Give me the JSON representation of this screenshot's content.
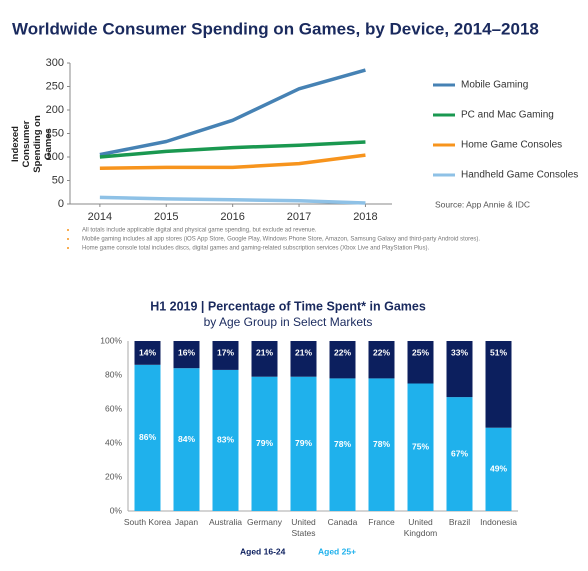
{
  "chart_data": [
    {
      "type": "line",
      "title": "Worldwide Consumer Spending on Games, by Device, 2014–2018",
      "y_label": "Indexed Consumer Spending on Games",
      "x": [
        2014,
        2015,
        2016,
        2017,
        2018
      ],
      "xticks": [
        2014,
        2015,
        2016,
        2017,
        2018
      ],
      "xlim": [
        2013.55,
        2018.4
      ],
      "ylim": [
        0,
        300
      ],
      "yticks": [
        0,
        50,
        100,
        150,
        200,
        250,
        300
      ],
      "legend": "right",
      "series": [
        {
          "name": "Mobile Gaming",
          "color": "#4682b4",
          "values": [
            105,
            133,
            178,
            245,
            285
          ]
        },
        {
          "name": "PC and Mac Gaming",
          "color": "#1a9850",
          "values": [
            100,
            112,
            120,
            125,
            132
          ]
        },
        {
          "name": "Home Game Consoles",
          "color": "#f7941d",
          "values": [
            76,
            78,
            78,
            86,
            104
          ]
        },
        {
          "name": "Handheld Game Consoles",
          "color": "#8ec1e6",
          "values": [
            14,
            11,
            9,
            7,
            2
          ]
        }
      ],
      "source": "Source: App Annie & IDC",
      "notes": [
        "All totals include applicable digital and physical game spending, but exclude ad revenue.",
        "Mobile gaming includes all app stores (iOS App Store, Google Play, Windows Phone Store, Amazon, Samsung Galaxy and third-party Android stores).",
        "Home game console total includes discs, digital games and gaming-related subscription services (Xbox Live and PlayStation Plus)."
      ]
    },
    {
      "type": "bar",
      "stacked": true,
      "title": "H1 2019 | Percentage of Time Spent* in Games",
      "subtitle": "by Age Group in Select Markets",
      "categories": [
        "South Korea",
        "Japan",
        "Australia",
        "Germany",
        "United States",
        "Canada",
        "France",
        "United Kingdom",
        "Brazil",
        "Indonesia"
      ],
      "ylim": [
        0,
        100
      ],
      "yticks": [
        {
          "value": 0,
          "label": "0%"
        },
        {
          "value": 20,
          "label": "20%"
        },
        {
          "value": 40,
          "label": "40%"
        },
        {
          "value": 60,
          "label": "60%"
        },
        {
          "value": 80,
          "label": "80%"
        },
        {
          "value": 100,
          "label": "100%"
        }
      ],
      "legend": "bottom",
      "series": [
        {
          "name": "Aged 25+",
          "color": "#1fb1ec",
          "values": [
            86,
            84,
            83,
            79,
            79,
            78,
            78,
            75,
            67,
            49
          ],
          "value_labels": [
            "86%",
            "84%",
            "83%",
            "79%",
            "79%",
            "78%",
            "78%",
            "75%",
            "67%",
            "49%"
          ]
        },
        {
          "name": "Aged 16-24",
          "color": "#0c1f5e",
          "values": [
            14,
            16,
            17,
            21,
            21,
            22,
            22,
            25,
            33,
            51
          ],
          "value_labels": [
            "14%",
            "16%",
            "17%",
            "21%",
            "21%",
            "22%",
            "22%",
            "25%",
            "33%",
            "51%"
          ]
        }
      ]
    }
  ]
}
